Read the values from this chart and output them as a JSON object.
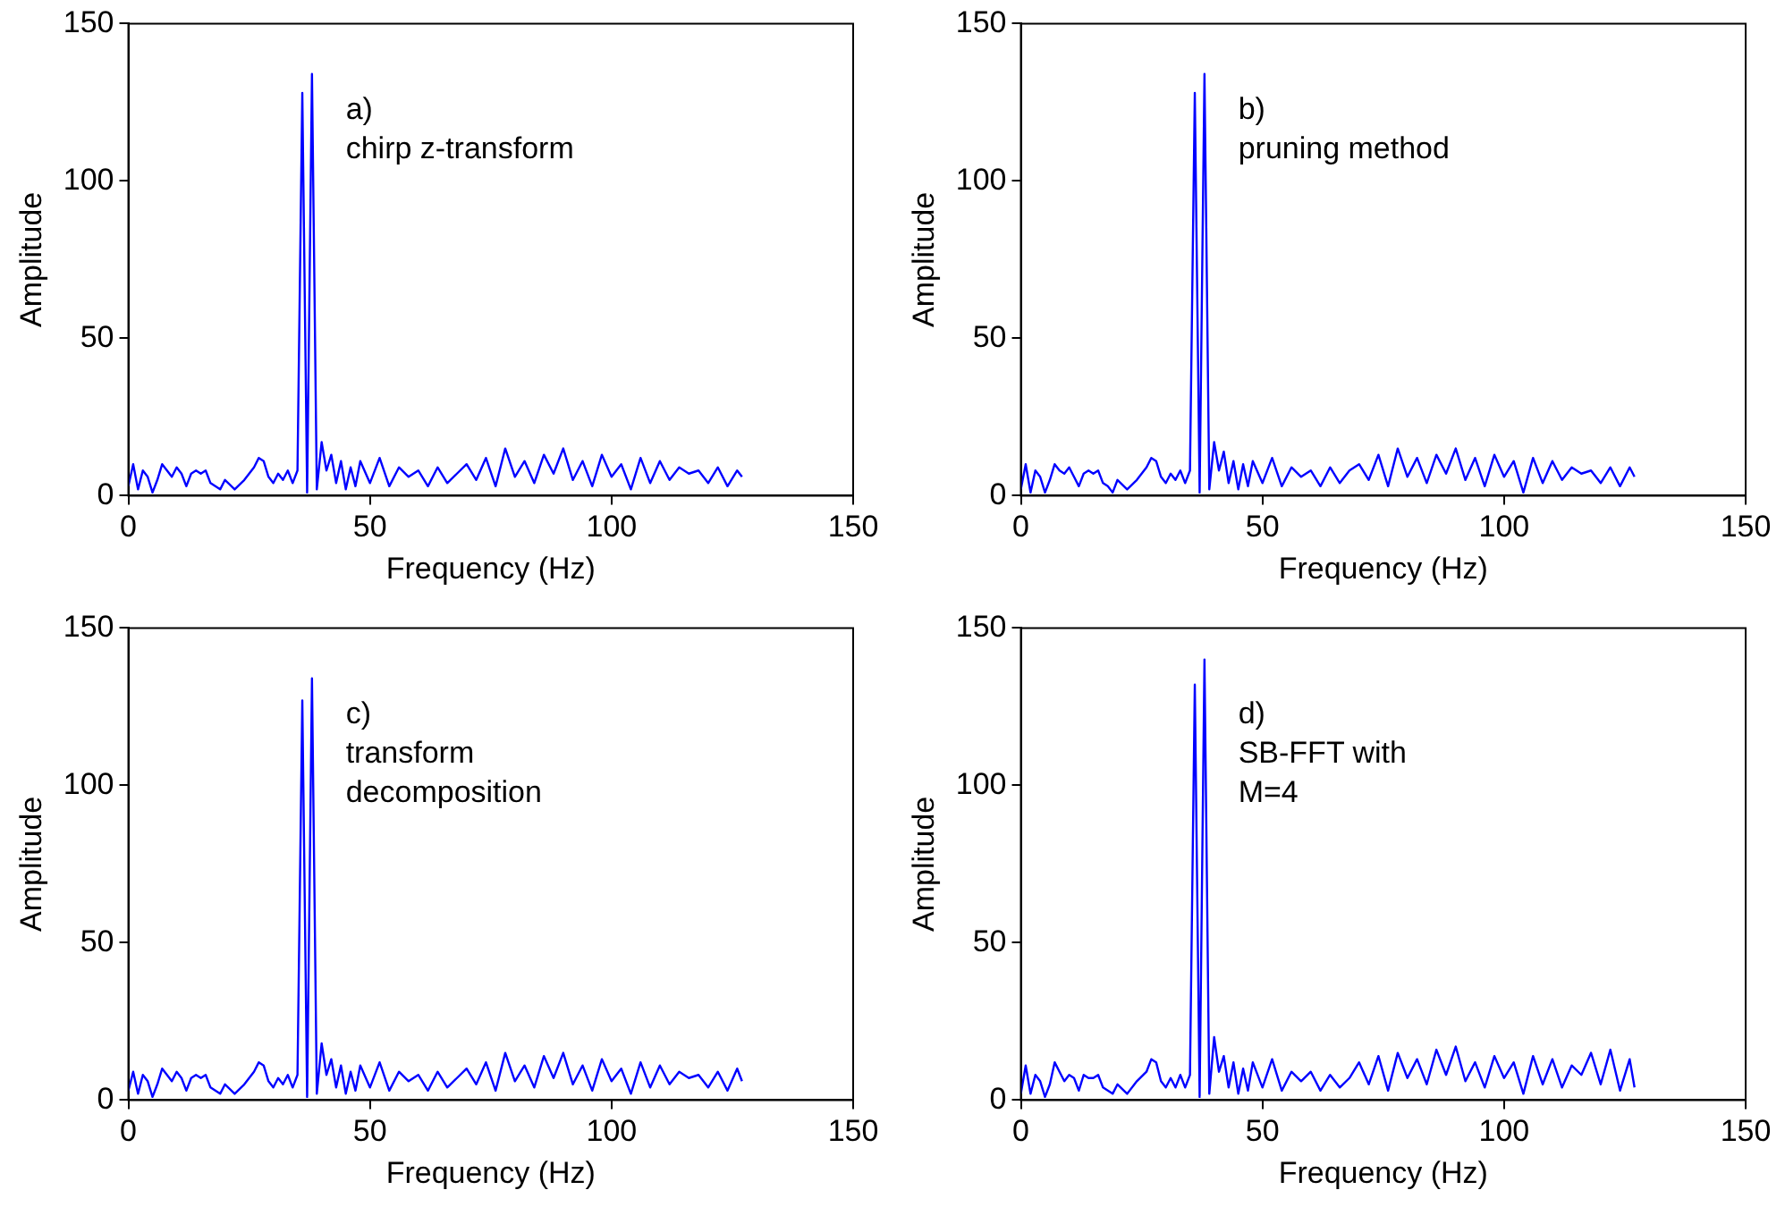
{
  "chart_data": [
    {
      "type": "line",
      "xlabel": "Frequency (Hz)",
      "ylabel": "Amplitude",
      "annotations": [
        "a)",
        "chirp z-transform"
      ],
      "xlim": [
        0,
        150
      ],
      "xticks": [
        0,
        50,
        100,
        150
      ],
      "ylim": [
        0,
        150
      ],
      "yticks": [
        0,
        50,
        100,
        150
      ],
      "grid": false,
      "legend": false,
      "marker": "none",
      "line_style": "solid",
      "series": [
        {
          "color": "#0000ff",
          "x": [
            0,
            1,
            2,
            3,
            4,
            5,
            6,
            7,
            8,
            9,
            10,
            11,
            12,
            13,
            14,
            15,
            16,
            17,
            18,
            19,
            20,
            22,
            24,
            26,
            27,
            28,
            29,
            30,
            31,
            32,
            33,
            34,
            35,
            36,
            37,
            38,
            39,
            40,
            41,
            42,
            43,
            44,
            45,
            46,
            47,
            48,
            50,
            52,
            54,
            56,
            58,
            60,
            62,
            64,
            66,
            68,
            70,
            72,
            74,
            76,
            78,
            80,
            82,
            84,
            86,
            88,
            90,
            92,
            94,
            96,
            98,
            100,
            102,
            104,
            106,
            108,
            110,
            112,
            114,
            116,
            118,
            120,
            122,
            124,
            126,
            127
          ],
          "values": [
            3,
            10,
            2,
            8,
            6,
            1,
            5,
            10,
            8,
            6,
            9,
            7,
            3,
            7,
            8,
            7,
            8,
            4,
            3,
            2,
            5,
            2,
            5,
            9,
            12,
            11,
            6,
            4,
            7,
            5,
            8,
            4,
            8,
            128,
            1,
            134,
            2,
            17,
            8,
            13,
            4,
            11,
            2,
            9,
            3,
            11,
            4,
            12,
            3,
            9,
            6,
            8,
            3,
            9,
            4,
            7,
            10,
            5,
            12,
            3,
            15,
            6,
            11,
            4,
            13,
            7,
            15,
            5,
            11,
            3,
            13,
            6,
            10,
            2,
            12,
            4,
            11,
            5,
            9,
            7,
            8,
            4,
            9,
            3,
            8,
            6
          ]
        }
      ]
    },
    {
      "type": "line",
      "xlabel": "Frequency (Hz)",
      "ylabel": "Amplitude",
      "annotations": [
        "b)",
        "pruning method"
      ],
      "xlim": [
        0,
        150
      ],
      "xticks": [
        0,
        50,
        100,
        150
      ],
      "ylim": [
        0,
        150
      ],
      "yticks": [
        0,
        50,
        100,
        150
      ],
      "grid": false,
      "legend": false,
      "marker": "none",
      "line_style": "solid",
      "series": [
        {
          "color": "#0000ff",
          "x": [
            0,
            1,
            2,
            3,
            4,
            5,
            6,
            7,
            8,
            9,
            10,
            11,
            12,
            13,
            14,
            15,
            16,
            17,
            18,
            19,
            20,
            22,
            24,
            26,
            27,
            28,
            29,
            30,
            31,
            32,
            33,
            34,
            35,
            36,
            37,
            38,
            39,
            40,
            41,
            42,
            43,
            44,
            45,
            46,
            47,
            48,
            50,
            52,
            54,
            56,
            58,
            60,
            62,
            64,
            66,
            68,
            70,
            72,
            74,
            76,
            78,
            80,
            82,
            84,
            86,
            88,
            90,
            92,
            94,
            96,
            98,
            100,
            102,
            104,
            106,
            108,
            110,
            112,
            114,
            116,
            118,
            120,
            122,
            124,
            126,
            127
          ],
          "values": [
            2,
            10,
            1,
            8,
            6,
            1,
            5,
            10,
            8,
            7,
            9,
            6,
            3,
            7,
            8,
            7,
            8,
            4,
            3,
            1,
            5,
            2,
            5,
            9,
            12,
            11,
            6,
            4,
            7,
            5,
            8,
            4,
            8,
            128,
            1,
            134,
            2,
            17,
            8,
            14,
            4,
            11,
            2,
            10,
            3,
            11,
            4,
            12,
            3,
            9,
            6,
            8,
            3,
            9,
            4,
            8,
            10,
            5,
            13,
            3,
            15,
            6,
            12,
            4,
            13,
            7,
            15,
            5,
            12,
            3,
            13,
            6,
            11,
            1,
            12,
            4,
            11,
            5,
            9,
            7,
            8,
            4,
            9,
            3,
            9,
            6
          ]
        }
      ]
    },
    {
      "type": "line",
      "xlabel": "Frequency (Hz)",
      "ylabel": "Amplitude",
      "annotations": [
        "c)",
        "transform",
        "decomposition"
      ],
      "xlim": [
        0,
        150
      ],
      "xticks": [
        0,
        50,
        100,
        150
      ],
      "ylim": [
        0,
        150
      ],
      "yticks": [
        0,
        50,
        100,
        150
      ],
      "grid": false,
      "legend": false,
      "marker": "none",
      "line_style": "solid",
      "series": [
        {
          "color": "#0000ff",
          "x": [
            0,
            1,
            2,
            3,
            4,
            5,
            6,
            7,
            8,
            9,
            10,
            11,
            12,
            13,
            14,
            15,
            16,
            17,
            18,
            19,
            20,
            22,
            24,
            26,
            27,
            28,
            29,
            30,
            31,
            32,
            33,
            34,
            35,
            36,
            37,
            38,
            39,
            40,
            41,
            42,
            43,
            44,
            45,
            46,
            47,
            48,
            50,
            52,
            54,
            56,
            58,
            60,
            62,
            64,
            66,
            68,
            70,
            72,
            74,
            76,
            78,
            80,
            82,
            84,
            86,
            88,
            90,
            92,
            94,
            96,
            98,
            100,
            102,
            104,
            106,
            108,
            110,
            112,
            114,
            116,
            118,
            120,
            122,
            124,
            126,
            127
          ],
          "values": [
            3,
            9,
            2,
            8,
            6,
            1,
            5,
            10,
            8,
            6,
            9,
            7,
            3,
            7,
            8,
            7,
            8,
            4,
            3,
            2,
            5,
            2,
            5,
            9,
            12,
            11,
            6,
            4,
            7,
            5,
            8,
            4,
            8,
            127,
            1,
            134,
            2,
            18,
            8,
            13,
            4,
            11,
            2,
            9,
            3,
            11,
            4,
            12,
            3,
            9,
            6,
            8,
            3,
            9,
            4,
            7,
            10,
            5,
            12,
            3,
            15,
            6,
            11,
            4,
            14,
            7,
            15,
            5,
            11,
            3,
            13,
            6,
            10,
            2,
            12,
            4,
            11,
            5,
            9,
            7,
            8,
            4,
            9,
            3,
            10,
            6
          ]
        }
      ]
    },
    {
      "type": "line",
      "xlabel": "Frequency (Hz)",
      "ylabel": "Amplitude",
      "annotations": [
        "d)",
        "SB-FFT with",
        "M=4"
      ],
      "xlim": [
        0,
        150
      ],
      "xticks": [
        0,
        50,
        100,
        150
      ],
      "ylim": [
        0,
        150
      ],
      "yticks": [
        0,
        50,
        100,
        150
      ],
      "grid": false,
      "legend": false,
      "marker": "none",
      "line_style": "solid",
      "series": [
        {
          "color": "#0000ff",
          "x": [
            0,
            1,
            2,
            3,
            4,
            5,
            6,
            7,
            8,
            9,
            10,
            11,
            12,
            13,
            14,
            15,
            16,
            17,
            18,
            19,
            20,
            22,
            24,
            26,
            27,
            28,
            29,
            30,
            31,
            32,
            33,
            34,
            35,
            36,
            37,
            38,
            39,
            40,
            41,
            42,
            43,
            44,
            45,
            46,
            47,
            48,
            50,
            52,
            54,
            56,
            58,
            60,
            62,
            64,
            66,
            68,
            70,
            72,
            74,
            76,
            78,
            80,
            82,
            84,
            86,
            88,
            90,
            92,
            94,
            96,
            98,
            100,
            102,
            104,
            106,
            108,
            110,
            112,
            114,
            116,
            118,
            120,
            122,
            124,
            126,
            127
          ],
          "values": [
            2,
            11,
            2,
            8,
            6,
            1,
            5,
            12,
            9,
            6,
            8,
            7,
            3,
            8,
            7,
            7,
            8,
            4,
            3,
            2,
            5,
            2,
            6,
            9,
            13,
            12,
            6,
            4,
            7,
            4,
            8,
            4,
            8,
            132,
            1,
            140,
            2,
            20,
            9,
            14,
            4,
            12,
            2,
            10,
            3,
            12,
            4,
            13,
            3,
            9,
            6,
            9,
            3,
            8,
            4,
            7,
            12,
            5,
            14,
            3,
            15,
            7,
            13,
            5,
            16,
            8,
            17,
            6,
            12,
            4,
            14,
            7,
            12,
            2,
            14,
            5,
            13,
            4,
            11,
            8,
            15,
            5,
            16,
            3,
            13,
            4
          ]
        }
      ]
    }
  ]
}
